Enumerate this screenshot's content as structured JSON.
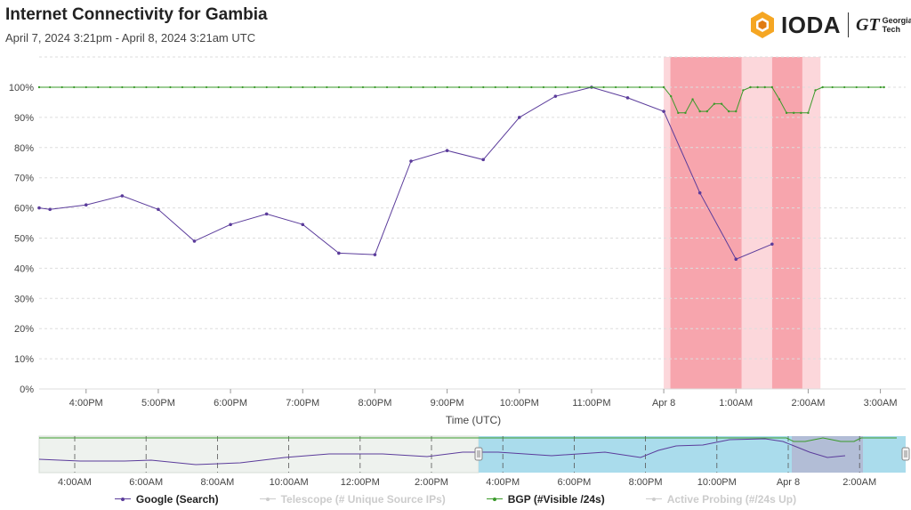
{
  "header": {
    "title": "Internet Connectivity for Gambia",
    "subtitle": "April 7, 2024 3:21pm - April 8, 2024 3:21am UTC"
  },
  "logo": {
    "ioda_text": "IODA",
    "gt_mark": "GT",
    "gt_line1": "Georgia",
    "gt_line2": "Tech"
  },
  "colors": {
    "google": "#5b3c9b",
    "bgp": "#3a9a2a",
    "outage_strong": "#f7a5ad",
    "outage_light": "#fcd7db",
    "selection": "#aadcec",
    "grid": "#dddddd"
  },
  "chart_data": {
    "type": "line",
    "xlabel": "Time (UTC)",
    "ylabel": "",
    "ylim": [
      0,
      100
    ],
    "y_tick_labels": [
      "0%",
      "10%",
      "20%",
      "30%",
      "40%",
      "50%",
      "60%",
      "70%",
      "80%",
      "90%",
      "100%"
    ],
    "x_tick_labels": [
      "4:00PM",
      "5:00PM",
      "6:00PM",
      "7:00PM",
      "8:00PM",
      "9:00PM",
      "10:00PM",
      "11:00PM",
      "Apr 8",
      "1:00AM",
      "2:00AM",
      "3:00AM"
    ],
    "series": [
      {
        "name": "Google (Search)",
        "color": "#5b3c9b",
        "x": [
          15.35,
          15.5,
          16.0,
          16.5,
          17.0,
          17.5,
          18.0,
          18.5,
          19.0,
          19.5,
          20.0,
          20.5,
          21.0,
          21.5,
          22.0,
          22.5,
          23.0,
          23.5,
          24.0,
          24.5,
          25.0,
          25.5
        ],
        "values": [
          60,
          59.5,
          61,
          64,
          59.5,
          49,
          54.5,
          58,
          54.5,
          45,
          44.5,
          75.5,
          79,
          76,
          90,
          97,
          100,
          96.5,
          92,
          65,
          43,
          48
        ]
      },
      {
        "name": "BGP (#Visible /24s)",
        "color": "#3a9a2a",
        "x": [
          15.35,
          24.0,
          24.1,
          24.2,
          24.3,
          24.4,
          24.5,
          24.6,
          24.7,
          24.8,
          24.9,
          25.0,
          25.1,
          25.2,
          25.3,
          25.4,
          25.5,
          25.6,
          25.7,
          25.8,
          25.9,
          26.0,
          26.1,
          26.2,
          27.05
        ],
        "values": [
          100,
          100,
          97,
          91.5,
          91.5,
          96,
          92,
          92,
          94.5,
          94.5,
          92,
          92,
          99,
          100,
          100,
          100,
          100,
          96,
          91.5,
          91.5,
          91.5,
          91.5,
          99,
          100,
          100
        ]
      }
    ],
    "outage_regions": [
      {
        "from": 24.09,
        "to": 25.08,
        "level": "strong"
      },
      {
        "from": 25.08,
        "to": 25.5,
        "level": "light"
      },
      {
        "from": 25.5,
        "to": 25.92,
        "level": "strong"
      },
      {
        "from": 25.92,
        "to": 26.17,
        "level": "light"
      },
      {
        "from": 24.0,
        "to": 24.09,
        "level": "light"
      }
    ],
    "navigator": {
      "x_tick_labels": [
        "4:00AM",
        "6:00AM",
        "8:00AM",
        "10:00AM",
        "12:00PM",
        "2:00PM",
        "4:00PM",
        "6:00PM",
        "8:00PM",
        "10:00PM",
        "Apr 8",
        "2:00AM"
      ],
      "selected_range": [
        "April 7, 2024 3:21pm",
        "April 8, 2024 3:21am"
      ]
    },
    "grid": true,
    "legend_position": "bottom"
  },
  "legend": [
    {
      "label": "Google (Search)",
      "color": "#5b3c9b",
      "visible": true
    },
    {
      "label": "Telescope (# Unique Source IPs)",
      "color": "#cccccc",
      "visible": false
    },
    {
      "label": "BGP (#Visible /24s)",
      "color": "#3a9a2a",
      "visible": true
    },
    {
      "label": "Active Probing (#/24s Up)",
      "color": "#cccccc",
      "visible": false
    }
  ]
}
